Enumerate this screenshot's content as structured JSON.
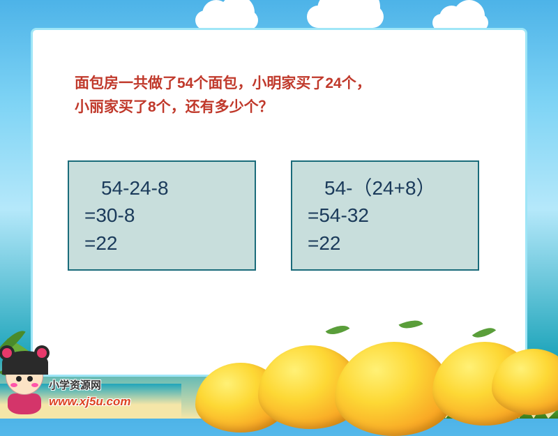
{
  "question": {
    "line1": "面包房一共做了54个面包，小明家买了24个，",
    "line2": "小丽家买了8个，还有多少个？",
    "color": "#c0392b",
    "fontsize_pt": 16
  },
  "solution_left": {
    "line1": "54-24-8",
    "line2": "=30-8",
    "line3": "=22",
    "box_bg": "#c8dedc",
    "box_border": "#1a6b7a",
    "text_color": "#1a3a5a",
    "fontsize_pt": 21
  },
  "solution_right": {
    "line1": "54-（24+8）",
    "line2": "=54-32",
    "line3": " =22",
    "box_bg": "#c8dedc",
    "box_border": "#1a6b7a",
    "text_color": "#1a3a5a",
    "fontsize_pt": 21
  },
  "logo": {
    "text": "小学资源网",
    "url": "www.xj5u.com"
  },
  "frame": {
    "background": "#ffffff",
    "border_color": "#9fe6f7"
  },
  "scene": {
    "sky_colors": [
      "#4db3e8",
      "#7fd4f5",
      "#b5e8fa"
    ],
    "sea_color": "#1fa5bb",
    "sand_color": "#f5e6a8",
    "fruit_colors": [
      "#fff176",
      "#fdd835",
      "#f9a825",
      "#e68a00"
    ],
    "leaf_color": "#5a9e3a"
  }
}
